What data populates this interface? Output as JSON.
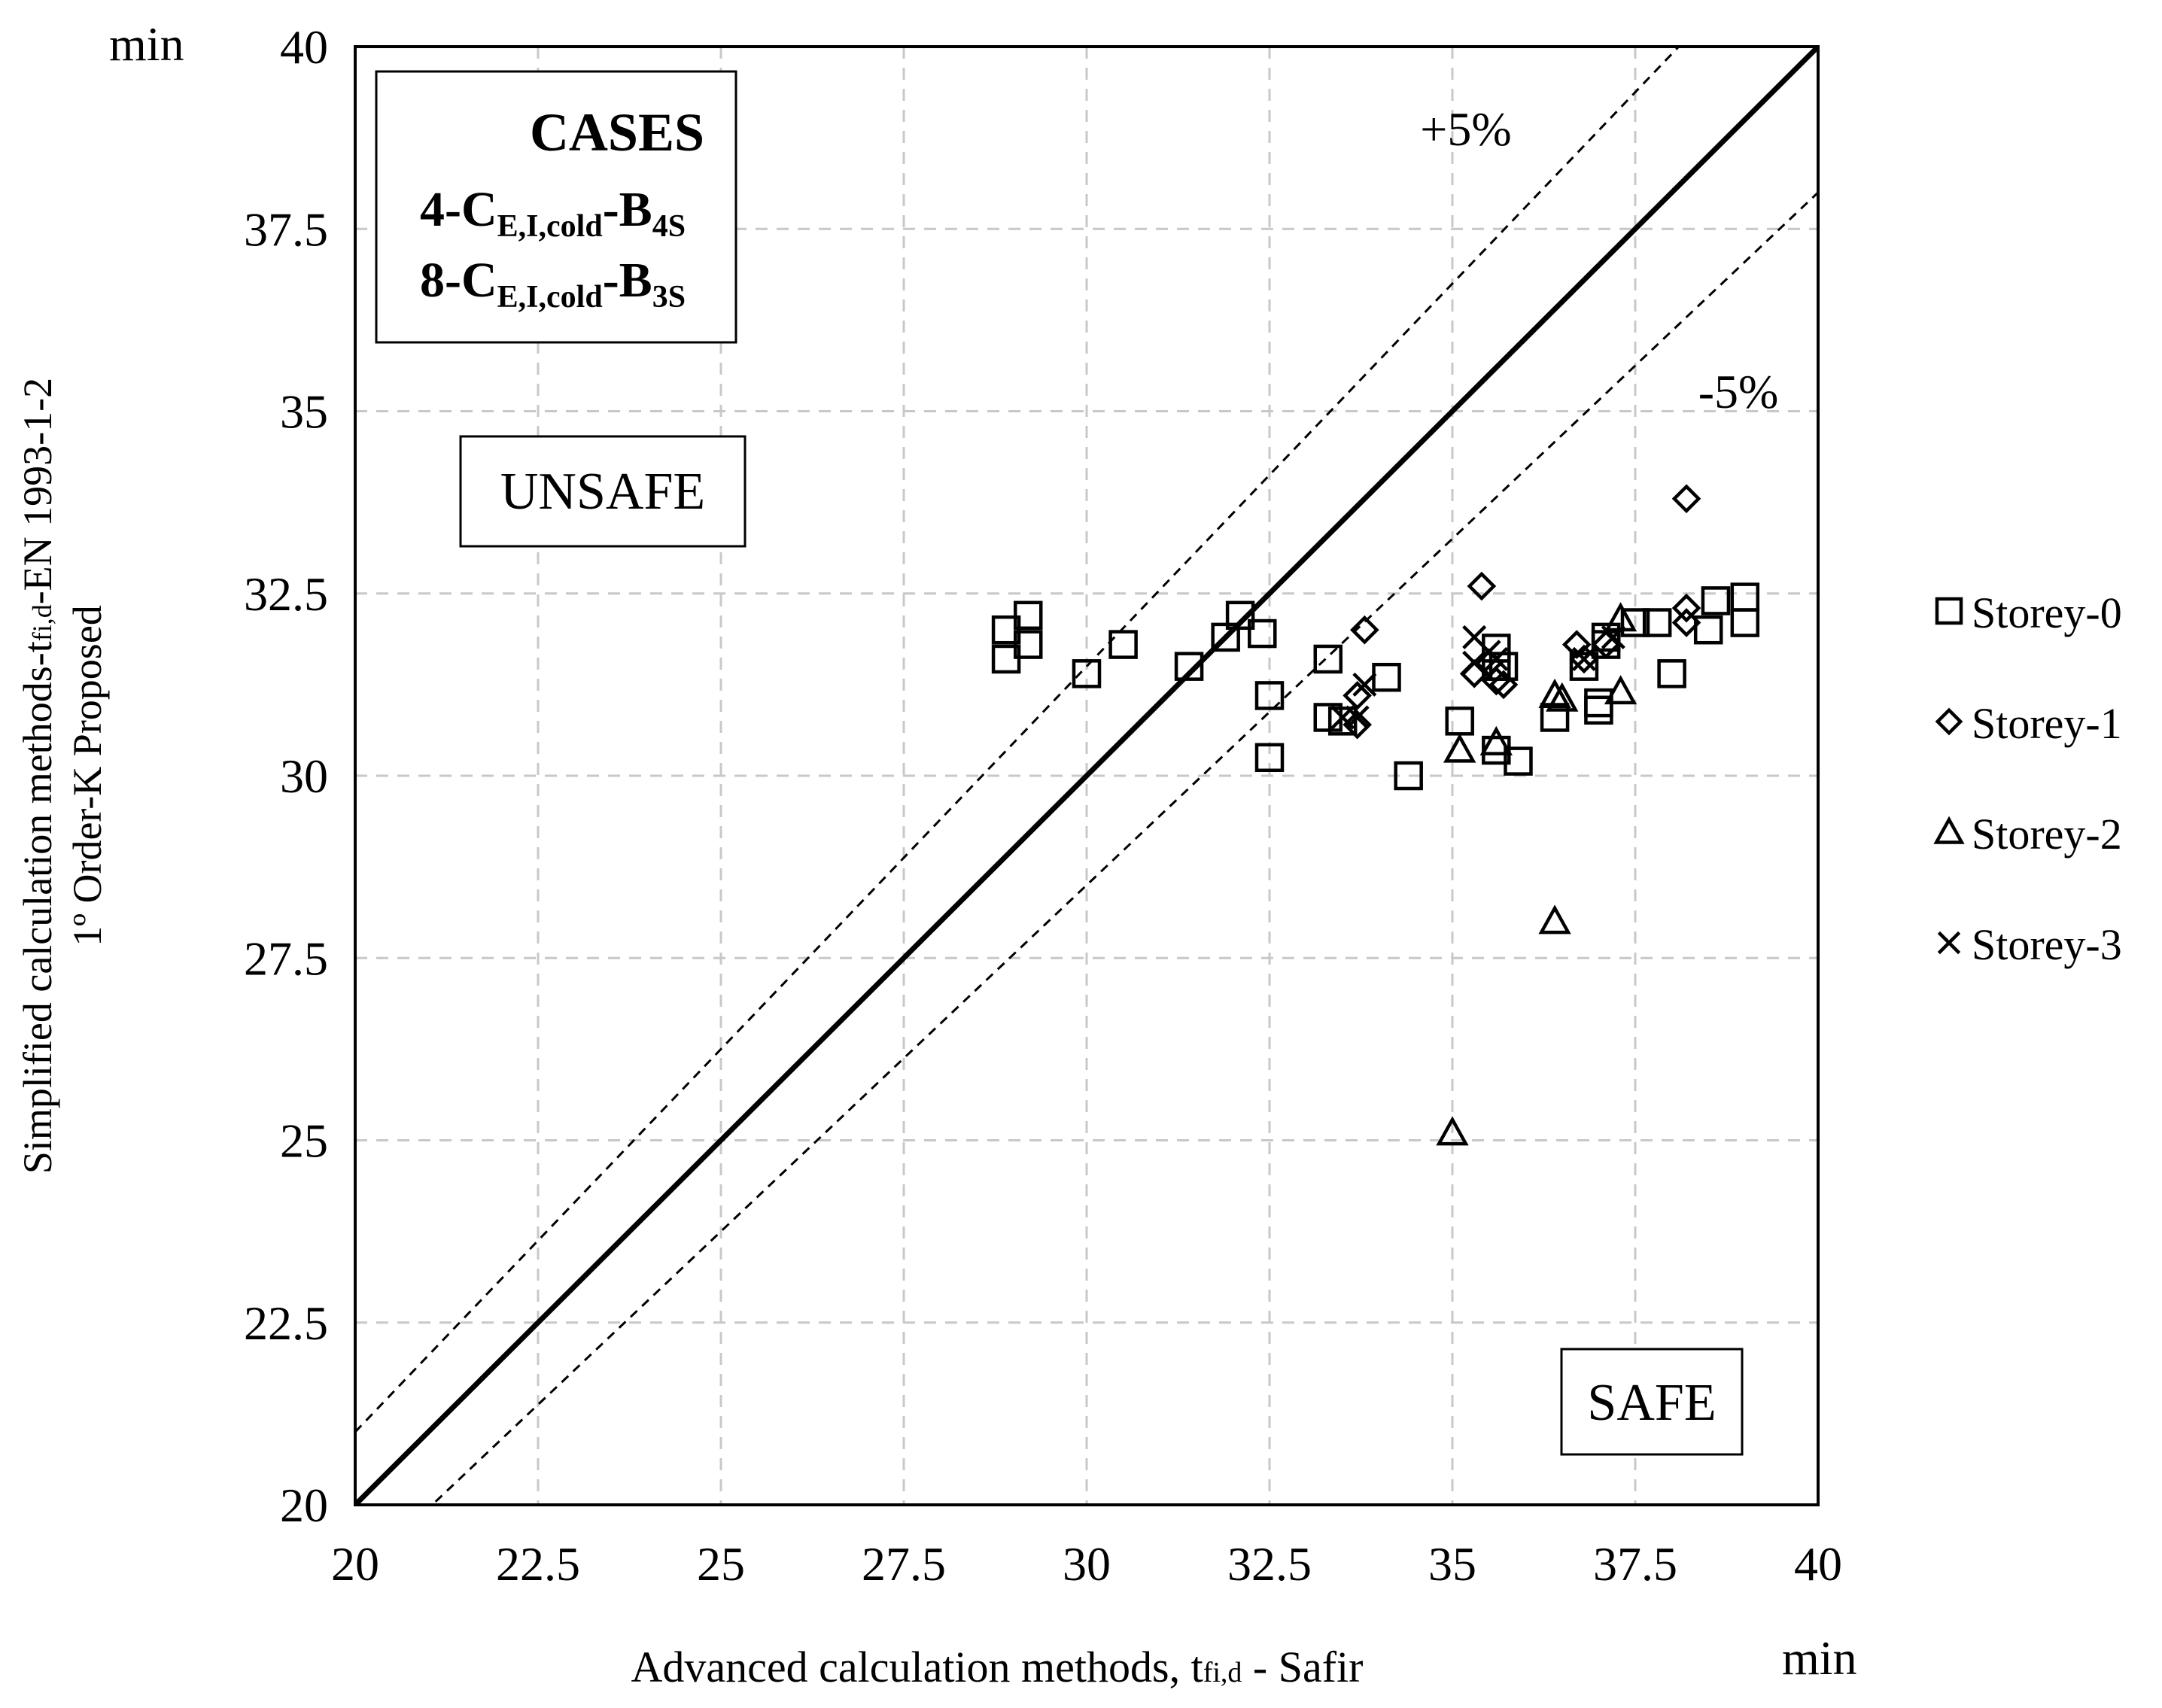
{
  "chart_data": {
    "type": "scatter",
    "xlabel_main": "Advanced calculation methods, t",
    "xlabel_sub": "fi,d",
    "xlabel_tail": " - Safir",
    "ylabel_line1_main": "Simplified calculation methods-t",
    "ylabel_line1_sub": "fi,d",
    "ylabel_line1_tail": "-EN 1993-1-2",
    "ylabel_line2": "1º Order-K Proposed",
    "x_unit": "min",
    "y_unit": "min",
    "xlim": [
      20,
      40
    ],
    "ylim": [
      20,
      40
    ],
    "xticks": [
      "20",
      "22.5",
      "25",
      "27.5",
      "30",
      "32.5",
      "35",
      "37.5",
      "40"
    ],
    "yticks": [
      "20",
      "22.5",
      "25",
      "27.5",
      "30",
      "32.5",
      "35",
      "37.5",
      "40"
    ],
    "tick_values": [
      20,
      22.5,
      25,
      27.5,
      30,
      32.5,
      35,
      37.5,
      40
    ],
    "grid": true,
    "legend_position": "right",
    "reference_lines": [
      {
        "label": "",
        "factor": 1.0,
        "style": "solid"
      },
      {
        "label": "+5%",
        "factor": 1.05,
        "style": "dashed"
      },
      {
        "label": "-5%",
        "factor": 0.95,
        "style": "dashed"
      }
    ],
    "annotations": {
      "unsafe": "UNSAFE",
      "safe": "SAFE",
      "cases_title": "CASES",
      "case1": {
        "prefix": "4-C",
        "sub": "E,I,cold",
        "mid": "-B",
        "sub2": "4S"
      },
      "case2": {
        "prefix": "8-C",
        "sub": "E,I,cold",
        "mid": "-B",
        "sub2": "3S"
      }
    },
    "series": [
      {
        "name": "Storey-0",
        "marker": "square",
        "points": [
          [
            28.9,
            32.0
          ],
          [
            28.9,
            31.6
          ],
          [
            29.2,
            32.2
          ],
          [
            29.2,
            31.8
          ],
          [
            30.0,
            31.4
          ],
          [
            30.5,
            31.8
          ],
          [
            31.4,
            31.5
          ],
          [
            31.9,
            31.9
          ],
          [
            32.1,
            32.2
          ],
          [
            32.4,
            31.95
          ],
          [
            32.5,
            31.1
          ],
          [
            32.5,
            30.25
          ],
          [
            33.3,
            31.6
          ],
          [
            33.3,
            30.8
          ],
          [
            33.5,
            30.75
          ],
          [
            34.1,
            31.35
          ],
          [
            34.4,
            30.0
          ],
          [
            35.1,
            30.75
          ],
          [
            35.6,
            31.75
          ],
          [
            35.6,
            31.5
          ],
          [
            35.7,
            31.5
          ],
          [
            35.6,
            30.35
          ],
          [
            35.9,
            30.2
          ],
          [
            36.4,
            30.8
          ],
          [
            36.8,
            31.5
          ],
          [
            37.0,
            31.0
          ],
          [
            37.0,
            30.9
          ],
          [
            37.1,
            31.8
          ],
          [
            37.1,
            31.9
          ],
          [
            37.5,
            32.1
          ],
          [
            37.8,
            32.1
          ],
          [
            38.0,
            31.4
          ],
          [
            38.5,
            32.0
          ],
          [
            38.6,
            32.4
          ],
          [
            39.0,
            32.45
          ],
          [
            39.0,
            32.1
          ]
        ]
      },
      {
        "name": "Storey-1",
        "marker": "diamond",
        "points": [
          [
            33.8,
            32.0
          ],
          [
            33.7,
            31.1
          ],
          [
            33.7,
            30.7
          ],
          [
            35.4,
            32.6
          ],
          [
            35.3,
            31.4
          ],
          [
            35.5,
            31.55
          ],
          [
            35.6,
            31.3
          ],
          [
            35.7,
            31.25
          ],
          [
            36.7,
            31.8
          ],
          [
            36.8,
            31.6
          ],
          [
            37.1,
            31.8
          ],
          [
            38.2,
            32.3
          ],
          [
            38.2,
            32.1
          ],
          [
            38.2,
            33.8
          ]
        ]
      },
      {
        "name": "Storey-2",
        "marker": "triangle",
        "points": [
          [
            35.1,
            30.35
          ],
          [
            35.6,
            30.45
          ],
          [
            36.4,
            31.1
          ],
          [
            36.5,
            31.05
          ],
          [
            37.3,
            31.15
          ],
          [
            37.3,
            32.15
          ],
          [
            36.4,
            28.0
          ],
          [
            35.0,
            25.1
          ]
        ]
      },
      {
        "name": "Storey-3",
        "marker": "x",
        "points": [
          [
            33.5,
            30.8
          ],
          [
            33.7,
            30.8
          ],
          [
            33.8,
            31.25
          ],
          [
            35.3,
            31.9
          ],
          [
            35.3,
            31.55
          ],
          [
            35.5,
            31.7
          ],
          [
            35.6,
            31.6
          ],
          [
            36.8,
            31.6
          ],
          [
            37.2,
            31.9
          ]
        ]
      }
    ]
  }
}
